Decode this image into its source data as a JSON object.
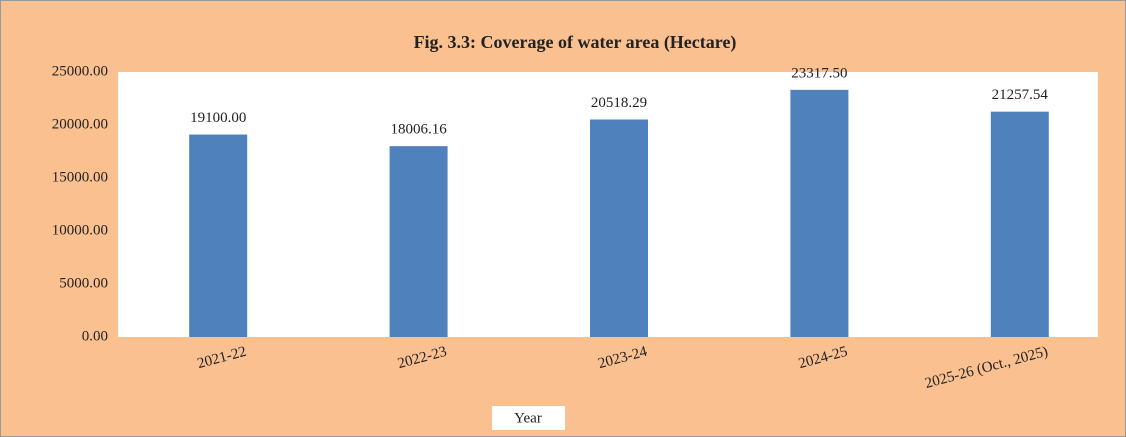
{
  "chart_data": {
    "type": "bar",
    "title": "Fig. 3.3: Coverage of water area (Hectare)",
    "x_label": "Year",
    "categories": [
      "2021-22",
      "2022-23",
      "2023-24",
      "2024-25",
      "2025-26 (Oct., 2025)"
    ],
    "values": [
      19100.0,
      18006.16,
      20518.29,
      23317.5,
      21257.54
    ],
    "value_labels": [
      "19100.00",
      "18006.16",
      "20518.29",
      "23317.50",
      "21257.54"
    ],
    "color": "#4f81bd",
    "ylim": [
      0,
      25000
    ],
    "yticks": [
      {
        "value": 0,
        "label": "0.00"
      },
      {
        "value": 5000,
        "label": "5000.00"
      },
      {
        "value": 10000,
        "label": "10000.00"
      },
      {
        "value": 15000,
        "label": "15000.00"
      },
      {
        "value": 20000,
        "label": "20000.00"
      },
      {
        "value": 25000,
        "label": "25000.00"
      }
    ],
    "grid": false
  }
}
